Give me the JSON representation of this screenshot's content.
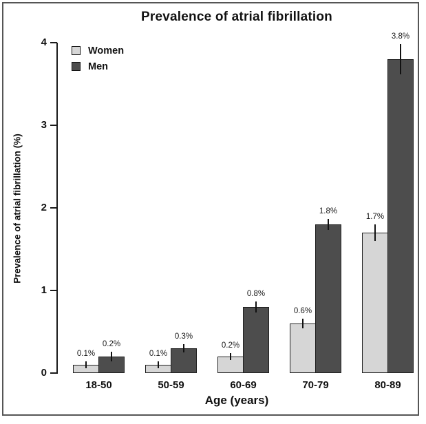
{
  "window": {
    "background": "#ffffff",
    "frame_border_color": "#555555"
  },
  "chart_data": {
    "type": "bar",
    "title": "Prevalence of atrial fibrillation",
    "xlabel": "Age (years)",
    "ylabel": "Prevalence of atrial fibrillation (%)",
    "categories": [
      "18-50",
      "50-59",
      "60-69",
      "70-79",
      "80-89"
    ],
    "series": [
      {
        "name": "Women",
        "color": "#d6d6d6",
        "values": [
          0.1,
          0.1,
          0.2,
          0.6,
          1.7
        ],
        "labels": [
          "0.1%",
          "0.1%",
          "0.2%",
          "0.6%",
          "1.7%"
        ],
        "errors": [
          0.04,
          0.04,
          0.04,
          0.06,
          0.1
        ]
      },
      {
        "name": "Men",
        "color": "#4d4d4d",
        "values": [
          0.2,
          0.3,
          0.8,
          1.8,
          3.8
        ],
        "labels": [
          "0.2%",
          "0.3%",
          "0.8%",
          "1.8%",
          "3.8%"
        ],
        "errors": [
          0.06,
          0.05,
          0.07,
          0.07,
          0.18
        ]
      }
    ],
    "ylim": [
      0,
      4
    ],
    "yticks": [
      0,
      1,
      2,
      3,
      4
    ],
    "grid": false,
    "legend_position": "top-left",
    "axis_color": "#1a1a1a",
    "bar_border_color": "#1f1f1f",
    "error_bar_color": "#111111"
  }
}
